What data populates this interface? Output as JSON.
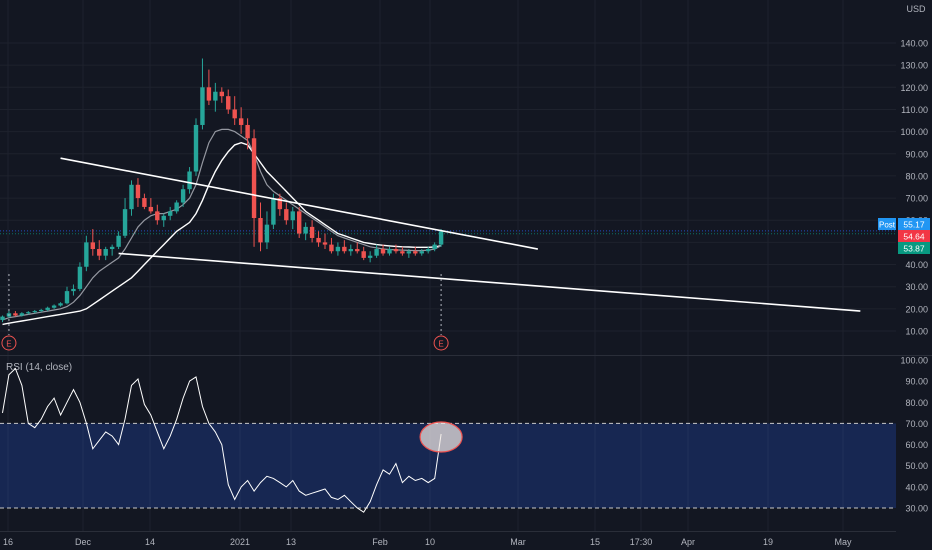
{
  "chart_data": {
    "type": "candlestick",
    "currency": "USD",
    "price_axis": {
      "ticks": [
        "140.00",
        "130.00",
        "120.00",
        "110.00",
        "100.00",
        "90.00",
        "80.00",
        "70.00",
        "60.00",
        "50.00",
        "40.00",
        "30.00",
        "20.00",
        "10.00"
      ],
      "range": [
        3,
        143
      ]
    },
    "x_ticks": [
      "16",
      "Dec",
      "14",
      "2021",
      "13",
      "Feb",
      "10",
      "Mar",
      "15",
      "17:30",
      "Apr",
      "19",
      "May"
    ],
    "price_labels": [
      {
        "label": "Post",
        "value": "55.17",
        "color": "#2196f3"
      },
      {
        "label": "",
        "value": "54.64",
        "color": "#f23645"
      },
      {
        "label": "",
        "value": "53.87",
        "color": "#089981"
      }
    ],
    "events": [
      {
        "label": "E",
        "index": 1
      },
      {
        "label": "E",
        "index": 68
      }
    ],
    "candles": [
      [
        15,
        17,
        14,
        16.5
      ],
      [
        16.5,
        19,
        16,
        18
      ],
      [
        18,
        19,
        16.5,
        17
      ],
      [
        17,
        18.5,
        16.5,
        18
      ],
      [
        18,
        19,
        17.5,
        18.5
      ],
      [
        18.5,
        19.5,
        18,
        19
      ],
      [
        19,
        20,
        18.5,
        19.5
      ],
      [
        19.5,
        21,
        19,
        20.5
      ],
      [
        20.5,
        22,
        20,
        21.5
      ],
      [
        21.5,
        23,
        21,
        22.5
      ],
      [
        22.5,
        30,
        22,
        28
      ],
      [
        28,
        31,
        26,
        29
      ],
      [
        29,
        41,
        28,
        39
      ],
      [
        39,
        53,
        37,
        50
      ],
      [
        50,
        56,
        44,
        47
      ],
      [
        47,
        51,
        42,
        44
      ],
      [
        44,
        48,
        42,
        47
      ],
      [
        47,
        49,
        44,
        48
      ],
      [
        48,
        55,
        47,
        53
      ],
      [
        53,
        70,
        52,
        65
      ],
      [
        65,
        78,
        62,
        76
      ],
      [
        76,
        79,
        66,
        70
      ],
      [
        70,
        72,
        65,
        66
      ],
      [
        66,
        70,
        63,
        64
      ],
      [
        64,
        67,
        58,
        60
      ],
      [
        60,
        63,
        57,
        62
      ],
      [
        62,
        66,
        60,
        64
      ],
      [
        64,
        69,
        63,
        68
      ],
      [
        68,
        76,
        66,
        74
      ],
      [
        74,
        84,
        72,
        82
      ],
      [
        82,
        106,
        80,
        103
      ],
      [
        103,
        133,
        101,
        120
      ],
      [
        120,
        128,
        112,
        114
      ],
      [
        114,
        122,
        109,
        118
      ],
      [
        118,
        120,
        113,
        116
      ],
      [
        116,
        119,
        108,
        110
      ],
      [
        110,
        116,
        103,
        106
      ],
      [
        106,
        111,
        99,
        103
      ],
      [
        103,
        106,
        92,
        97
      ],
      [
        97,
        101,
        48,
        61
      ],
      [
        61,
        68,
        46,
        50
      ],
      [
        50,
        64,
        47,
        58
      ],
      [
        58,
        72,
        56,
        70
      ],
      [
        70,
        72,
        62,
        65
      ],
      [
        65,
        68,
        58,
        60
      ],
      [
        60,
        66,
        56,
        64
      ],
      [
        64,
        66,
        52,
        54
      ],
      [
        54,
        59,
        51,
        57
      ],
      [
        57,
        60,
        50,
        52
      ],
      [
        52,
        55,
        48,
        50
      ],
      [
        50,
        54,
        47,
        49
      ],
      [
        49,
        52,
        45,
        46
      ],
      [
        46,
        50,
        44,
        48
      ],
      [
        48,
        51,
        45,
        46
      ],
      [
        46,
        49,
        44,
        47
      ],
      [
        47,
        50,
        45,
        46
      ],
      [
        46,
        48,
        42,
        43
      ],
      [
        43,
        46,
        41,
        44
      ],
      [
        44,
        49,
        43,
        47
      ],
      [
        47,
        49,
        44,
        45
      ],
      [
        45,
        48,
        44,
        47
      ],
      [
        47,
        49,
        45,
        46
      ],
      [
        46,
        48,
        44,
        45
      ],
      [
        45,
        47,
        43,
        46
      ],
      [
        46,
        48,
        44,
        45
      ],
      [
        45,
        47,
        44,
        46
      ],
      [
        46,
        48,
        45,
        47
      ],
      [
        47,
        50,
        46,
        49
      ],
      [
        49,
        56,
        48,
        55
      ]
    ],
    "ma_fast": [
      15,
      16,
      16.5,
      17,
      17.5,
      18,
      18.5,
      19,
      19.5,
      20,
      21,
      23,
      26,
      30,
      34,
      37,
      39,
      41,
      43,
      47,
      52,
      57,
      60,
      62,
      63,
      63,
      64,
      65,
      67,
      70,
      76,
      86,
      95,
      100,
      101,
      101,
      100,
      98,
      96,
      90,
      82,
      76,
      73,
      71,
      69,
      67,
      65,
      63,
      61,
      59,
      57,
      55,
      53,
      52,
      51,
      50,
      49,
      48,
      47.5,
      47,
      46.8,
      46.6,
      46.5,
      46.4,
      46.3,
      46.3,
      46.5,
      47,
      48.5
    ],
    "ma_slow": [
      13,
      13.5,
      14,
      14.5,
      15,
      15.5,
      16,
      16.5,
      17,
      17.5,
      18,
      18.5,
      19,
      20,
      22,
      24,
      26,
      28,
      30,
      32,
      34,
      37,
      40,
      43,
      46,
      49,
      52,
      55,
      57,
      59,
      63,
      69,
      76,
      82,
      87,
      91,
      94,
      95,
      94,
      90,
      86,
      82,
      79,
      76,
      73,
      70,
      67,
      64,
      62,
      60,
      58,
      56,
      54,
      53,
      52,
      51,
      50,
      49.5,
      49,
      48.7,
      48.4,
      48.2,
      48,
      47.9,
      47.8,
      47.8,
      47.8,
      47.9,
      48.5
    ],
    "trendlines": [
      {
        "from": [
          9,
          88
        ],
        "to": [
          83,
          47
        ]
      },
      {
        "from": [
          18,
          45
        ],
        "to": [
          133,
          19
        ]
      }
    ],
    "rsi": {
      "label": "RSI (14, close)",
      "ticks": [
        "100.00",
        "90.00",
        "80.00",
        "70.00",
        "60.00",
        "50.00",
        "40.00",
        "30.00"
      ],
      "band": [
        30,
        70
      ],
      "values": [
        75,
        93,
        96,
        88,
        70,
        68,
        72,
        78,
        82,
        74,
        80,
        86,
        80,
        70,
        58,
        62,
        66,
        64,
        60,
        72,
        88,
        91,
        79,
        74,
        66,
        58,
        64,
        72,
        82,
        90,
        92,
        78,
        70,
        66,
        60,
        41,
        34,
        40,
        43,
        38,
        42,
        45,
        44,
        42,
        40,
        43,
        38,
        36,
        37,
        38,
        39,
        35,
        34,
        36,
        33,
        30,
        28,
        33,
        41,
        48,
        46,
        51,
        42,
        45,
        43,
        44,
        42,
        44,
        65
      ],
      "highlight_index": 68
    }
  }
}
